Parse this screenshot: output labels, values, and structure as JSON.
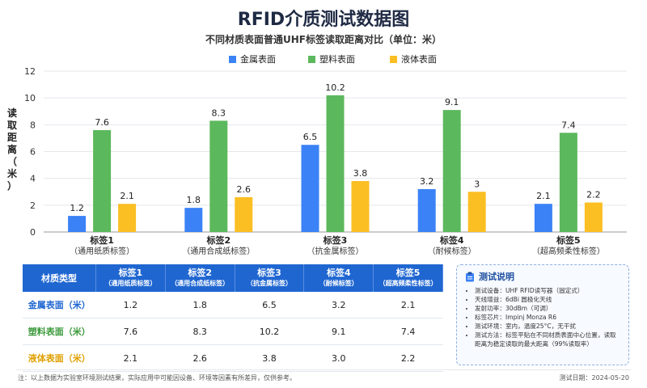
{
  "colors": {
    "metal": "#3b82f6",
    "plastic": "#5cb85c",
    "liquid": "#fbbf24",
    "header": "#1f66d1"
  },
  "chart_data": {
    "type": "bar",
    "title": "RFID介质测试数据图",
    "subtitle": "不同材质表面普通UHF标签读取距离对比（单位：米）",
    "ylabel": "读取距离（米）",
    "ylim": [
      0,
      12
    ],
    "yticks": [
      0,
      2,
      4,
      6,
      8,
      10,
      12
    ],
    "grid": true,
    "legend_position": "top",
    "categories": [
      {
        "name": "标签1",
        "desc": "（通用纸质标签）"
      },
      {
        "name": "标签2",
        "desc": "（通用合成纸标签）"
      },
      {
        "name": "标签3",
        "desc": "（抗金属标签）"
      },
      {
        "name": "标签4",
        "desc": "（耐候标签）"
      },
      {
        "name": "标签5",
        "desc": "（超高频柔性标签）"
      }
    ],
    "series": [
      {
        "name": "金属表面",
        "color": "#3b82f6",
        "values": [
          1.2,
          1.8,
          6.5,
          3.2,
          2.1
        ]
      },
      {
        "name": "塑料表面",
        "color": "#5cb85c",
        "values": [
          7.6,
          8.3,
          10.2,
          9.1,
          7.4
        ]
      },
      {
        "name": "液体表面",
        "color": "#fbbf24",
        "values": [
          2.1,
          2.6,
          3.8,
          3.0,
          2.2
        ]
      }
    ]
  },
  "table": {
    "header_first": "材质类型",
    "columns": [
      {
        "name": "标签1",
        "desc": "（通用纸质标签）"
      },
      {
        "name": "标签2",
        "desc": "（通用合成纸标签）"
      },
      {
        "name": "标签3",
        "desc": "（抗金属标签）"
      },
      {
        "name": "标签4",
        "desc": "（耐候标签）"
      },
      {
        "name": "标签5",
        "desc": "（超高频柔性标签）"
      }
    ],
    "rows": [
      {
        "label": "金属表面（米）",
        "color": "#1f66d1",
        "values": [
          "1.2",
          "1.8",
          "6.5",
          "3.2",
          "2.1"
        ]
      },
      {
        "label": "塑料表面（米）",
        "color": "#3c9a3c",
        "values": [
          "7.6",
          "8.3",
          "10.2",
          "9.1",
          "7.4"
        ]
      },
      {
        "label": "液体表面（米）",
        "color": "#e0a000",
        "values": [
          "2.1",
          "2.6",
          "3.8",
          "3.0",
          "2.2"
        ]
      }
    ]
  },
  "info": {
    "title": "测试说明",
    "items": [
      "测试设备：UHF RFID读写器（固定式）",
      "天线增益：6dBi 圆极化天线",
      "发射功率：30dBm（可调）",
      "标签芯片：Impinj Monza R6",
      "测试环境：室内，温度25°C，无干扰",
      "测试方法：标签平贴在不同材质表面中心位置，读取距离为稳定读取的最大距离（99%读取率）"
    ]
  },
  "footer": {
    "note": "注：以上数据为实验室环境测试结果，实际应用中可能因设备、环境等因素有所差异，仅供参考。",
    "date": "测试日期：2024-05-20"
  }
}
